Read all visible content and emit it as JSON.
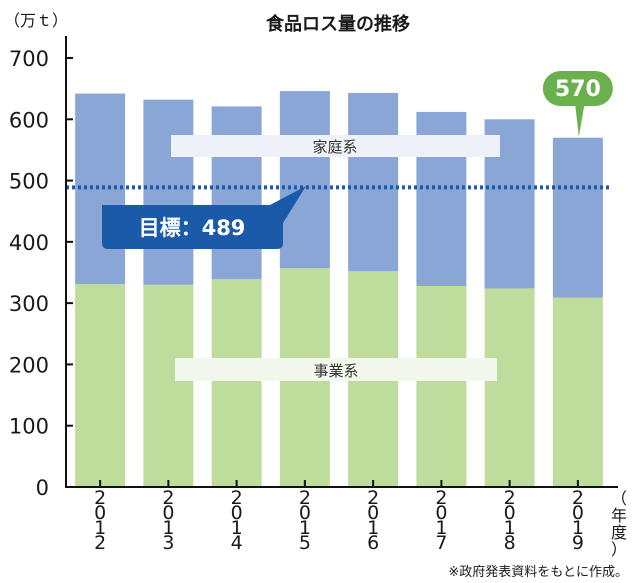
{
  "chart_data": {
    "type": "bar",
    "stacked": true,
    "title": "食品ロス量の推移",
    "y_unit_label": "（万ｔ）",
    "x_unit_label": "（年度）",
    "source_note": "※政府発表資料をもとに作成。",
    "categories": [
      "2012",
      "2013",
      "2014",
      "2015",
      "2016",
      "2017",
      "2018",
      "2019"
    ],
    "series": [
      {
        "name": "事業系",
        "color": "#bedd9c",
        "values": [
          331,
          330,
          339,
          357,
          352,
          328,
          324,
          309
        ]
      },
      {
        "name": "家庭系",
        "color": "#8aa6d6",
        "values": [
          311,
          302,
          282,
          289,
          291,
          284,
          276,
          261
        ]
      }
    ],
    "totals": [
      642,
      632,
      621,
      646,
      643,
      612,
      600,
      570
    ],
    "y_ticks": [
      0,
      100,
      200,
      300,
      400,
      500,
      600,
      700
    ],
    "ylim": [
      0,
      700
    ],
    "grid": false,
    "target": {
      "value": 489,
      "label": "目標：489",
      "color": "#1a5aa8"
    },
    "callout": {
      "category": "2019",
      "value": 570,
      "label": "570",
      "color": "#6ab04c"
    }
  }
}
